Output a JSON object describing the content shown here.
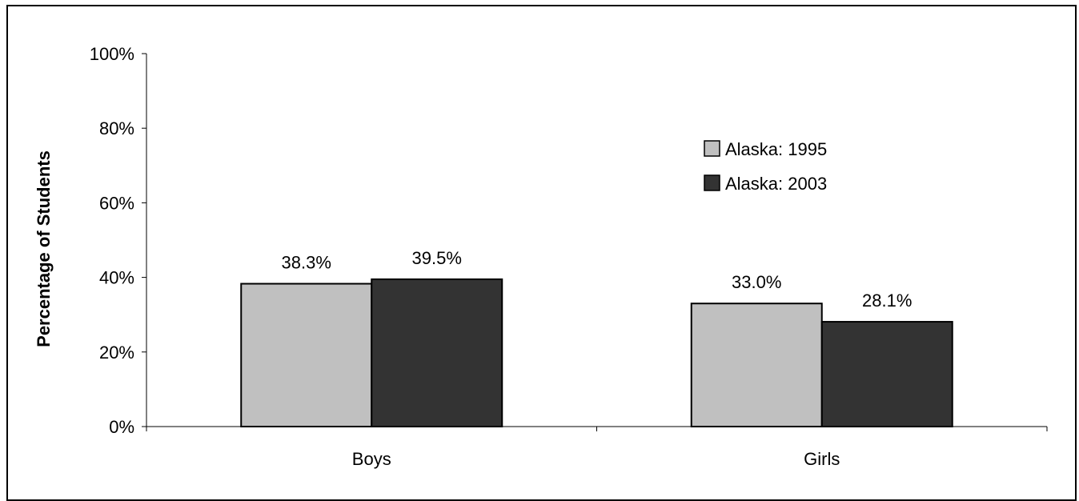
{
  "chart_data": {
    "type": "bar",
    "categories": [
      "Boys",
      "Girls"
    ],
    "series": [
      {
        "name": "Alaska: 1995",
        "values": [
          38.3,
          33.0
        ],
        "color": "#c0c0c0"
      },
      {
        "name": "Alaska: 2003",
        "values": [
          39.5,
          28.1
        ],
        "color": "#333333"
      }
    ],
    "data_labels": [
      [
        "38.3%",
        "33.0%"
      ],
      [
        "39.5%",
        "28.1%"
      ]
    ],
    "ylabel": "Percentage of Students",
    "xlabel": "",
    "ylim": [
      0,
      100
    ],
    "y_ticks": [
      0,
      20,
      40,
      60,
      80,
      100
    ],
    "y_tick_labels": [
      "0%",
      "20%",
      "40%",
      "60%",
      "80%",
      "100%"
    ],
    "legend_position": "upper-right",
    "grid": false
  }
}
